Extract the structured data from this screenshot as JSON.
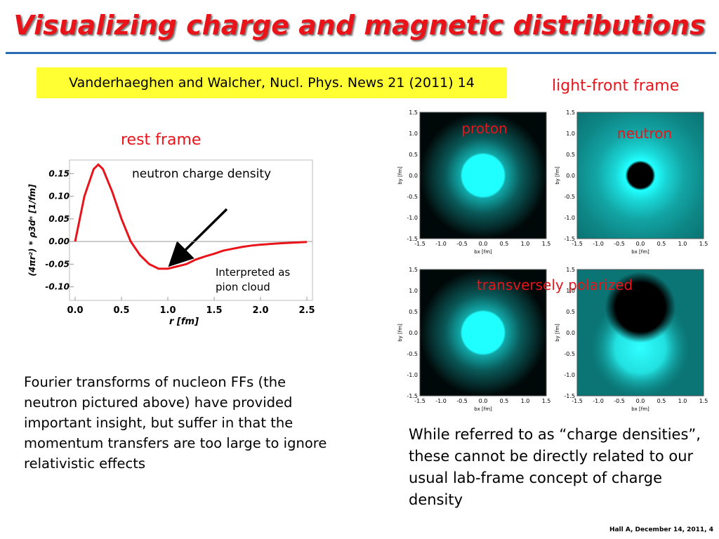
{
  "header": {
    "title": "Visualizing charge and magnetic distributions",
    "citation": "Vanderhaeghen and Walcher, Nucl. Phys. News 21 (2011) 14"
  },
  "labels": {
    "rest_frame": "rest frame",
    "light_front": "light-front frame",
    "proton": "proton",
    "neutron": "neutron",
    "transverse": "transversely polarized"
  },
  "chart_data": {
    "type": "line",
    "title": "neutron charge density",
    "x_label": "r [fm]",
    "y_label": "(4πr²) * ρ3dⁿ [1/fm]",
    "annotation": [
      "Interpreted as",
      "pion cloud"
    ],
    "x": [
      0,
      0.1,
      0.2,
      0.25,
      0.3,
      0.4,
      0.5,
      0.6,
      0.7,
      0.8,
      0.9,
      1.0,
      1.1,
      1.2,
      1.3,
      1.4,
      1.5,
      1.6,
      1.7,
      1.8,
      1.9,
      2.0,
      2.2,
      2.5
    ],
    "values": [
      0,
      0.1,
      0.16,
      0.17,
      0.16,
      0.11,
      0.05,
      0.0,
      -0.03,
      -0.05,
      -0.06,
      -0.06,
      -0.055,
      -0.05,
      -0.04,
      -0.033,
      -0.027,
      -0.02,
      -0.016,
      -0.012,
      -0.009,
      -0.007,
      -0.004,
      -0.001
    ],
    "color": "#e8141a",
    "xlim": [
      0,
      2.5
    ],
    "xticks": [
      {
        "value": 0,
        "label": "0.0"
      },
      0.5,
      {
        "value": 1,
        "label": "1.0"
      },
      1.5,
      {
        "value": 2,
        "label": "2.0"
      },
      2.5
    ],
    "ylim": [
      -0.13,
      0.18
    ],
    "yticks": [
      {
        "value": -0.1,
        "label": "-0.10"
      },
      {
        "value": -0.05,
        "label": "-0.05"
      },
      {
        "value": 0,
        "label": "0.00"
      },
      0.05,
      {
        "value": 0.1,
        "label": "0.10"
      },
      0.15
    ]
  },
  "density_axes": {
    "ticks": [
      "1.5",
      "1.0",
      "0.5",
      "0.0",
      "-0.5",
      "-1.0",
      "-1.5"
    ],
    "x_label": "bx [fm]",
    "y_label": "by [fm]"
  },
  "text": {
    "left": "Fourier transforms of nucleon FFs (the neutron pictured above) have provided important insight, but suffer in that the momentum transfers are too large to ignore relativistic effects",
    "right": "While referred to as “charge densities”, these cannot be directly related to our usual lab-frame concept of charge density",
    "footer": "Hall A, December 14, 2011, 4"
  }
}
